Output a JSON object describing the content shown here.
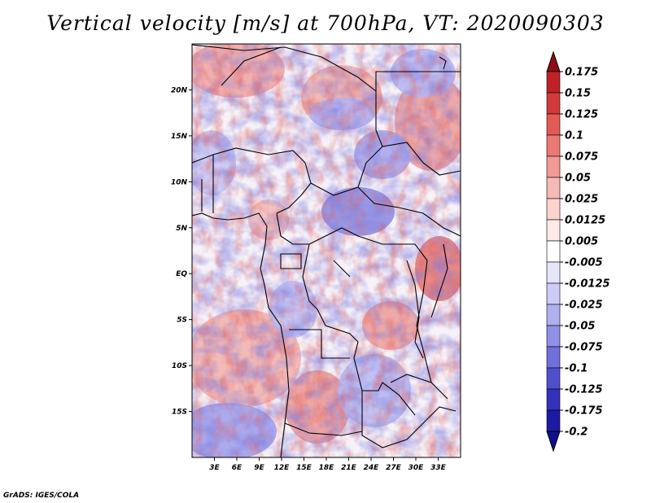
{
  "title": "Vertical velocity [m/s] at 700hPa, VT: 2020090303",
  "credit": "GrADS: IGES/COLA",
  "map": {
    "lon_range": [
      0,
      36
    ],
    "lat_range": [
      -20,
      25
    ],
    "lat_ticks": [
      {
        "value": 20,
        "label": "20N"
      },
      {
        "value": 15,
        "label": "15N"
      },
      {
        "value": 10,
        "label": "10N"
      },
      {
        "value": 5,
        "label": "5N"
      },
      {
        "value": 0,
        "label": "EQ"
      },
      {
        "value": -5,
        "label": "5S"
      },
      {
        "value": -10,
        "label": "10S"
      },
      {
        "value": -15,
        "label": "15S"
      }
    ],
    "lon_ticks": [
      {
        "value": 3,
        "label": "3E"
      },
      {
        "value": 6,
        "label": "6E"
      },
      {
        "value": 9,
        "label": "9E"
      },
      {
        "value": 12,
        "label": "12E"
      },
      {
        "value": 15,
        "label": "15E"
      },
      {
        "value": 18,
        "label": "18E"
      },
      {
        "value": 21,
        "label": "21E"
      },
      {
        "value": 24,
        "label": "24E"
      },
      {
        "value": 27,
        "label": "27E"
      },
      {
        "value": 30,
        "label": "30E"
      },
      {
        "value": 33,
        "label": "33E"
      }
    ]
  },
  "colorbar": {
    "levels": [
      {
        "label": "0.175",
        "color": "#a5161e"
      },
      {
        "label": "0.15",
        "color": "#be2228"
      },
      {
        "label": "0.125",
        "color": "#d33a3a"
      },
      {
        "label": "0.1",
        "color": "#e35a55"
      },
      {
        "label": "0.075",
        "color": "#ec7a74"
      },
      {
        "label": "0.05",
        "color": "#f29a93"
      },
      {
        "label": "0.025",
        "color": "#f7b9b3"
      },
      {
        "label": "0.0125",
        "color": "#fbd3cf"
      },
      {
        "label": "0.005",
        "color": "#fde9e7"
      },
      {
        "label": "-0.005",
        "color": "#ffffff"
      },
      {
        "label": "-0.0125",
        "color": "#e6e6fb"
      },
      {
        "label": "-0.025",
        "color": "#ccccf6"
      },
      {
        "label": "-0.05",
        "color": "#b0b0f0"
      },
      {
        "label": "-0.075",
        "color": "#9090e6"
      },
      {
        "label": "-0.1",
        "color": "#7070dc"
      },
      {
        "label": "-0.125",
        "color": "#5050cf"
      },
      {
        "label": "-0.175",
        "color": "#3232bd"
      },
      {
        "label": "-0.2",
        "color": "#1a1aa3"
      }
    ],
    "top_color": "#8e0d16",
    "bottom_color": "#10108c"
  }
}
